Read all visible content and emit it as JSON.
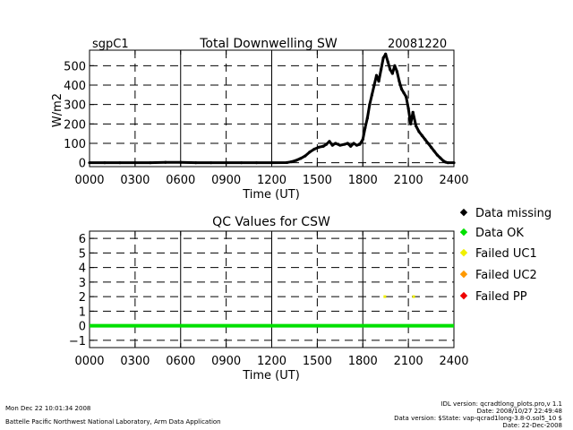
{
  "header": {
    "site": "sgpC1",
    "date": "20081220"
  },
  "legend": {
    "items": [
      {
        "label": "Data missing",
        "color": "#000000"
      },
      {
        "label": "Data OK",
        "color": "#00e000"
      },
      {
        "label": "Failed UC1",
        "color": "#f0f000"
      },
      {
        "label": "Failed UC2",
        "color": "#ff9900"
      },
      {
        "label": "Failed PP",
        "color": "#ee0000"
      }
    ]
  },
  "footer": {
    "run_time": "Mon Dec 22 10:01:34 2008",
    "org": "Battelle Pacific Northwest National Laboratory, Arm Data Application",
    "idl_version": "IDL version: qcradtlong_plots.pro,v 1.1",
    "idl_date": "Date: 2008/10/27 22:49:48",
    "data_version": "Data version: $State: vap-qcrad1long-3.8-0.sol5_10 $",
    "data_date": "Date: 22-Dec-2008"
  },
  "chart_data": [
    {
      "type": "scatter",
      "title": "Total Downwelling SW",
      "xlabel": "Time (UT)",
      "ylabel": "W/m2",
      "xlim": [
        0,
        2400
      ],
      "ylim": [
        -20,
        580
      ],
      "xticks": [
        "0000",
        "0300",
        "0600",
        "0900",
        "1200",
        "1500",
        "1800",
        "2100",
        "2400"
      ],
      "yticks": [
        0,
        100,
        200,
        300,
        400,
        500
      ],
      "grid": true,
      "series": [
        {
          "color": "#000000",
          "x": [
            0,
            100,
            200,
            300,
            400,
            500,
            600,
            700,
            800,
            900,
            1000,
            1100,
            1200,
            1300,
            1330,
            1360,
            1390,
            1420,
            1450,
            1480,
            1510,
            1540,
            1560,
            1580,
            1600,
            1620,
            1650,
            1680,
            1700,
            1720,
            1740,
            1760,
            1780,
            1800,
            1815,
            1830,
            1845,
            1860,
            1875,
            1890,
            1905,
            1920,
            1935,
            1950,
            1965,
            1980,
            1995,
            2010,
            2025,
            2040,
            2055,
            2070,
            2085,
            2100,
            2115,
            2130,
            2150,
            2170,
            2190,
            2210,
            2230,
            2250,
            2270,
            2290,
            2310,
            2330,
            2345,
            2360,
            2400
          ],
          "y": [
            0,
            0,
            0,
            0,
            0,
            2,
            2,
            0,
            0,
            0,
            0,
            0,
            0,
            1,
            5,
            12,
            22,
            35,
            55,
            70,
            80,
            85,
            95,
            110,
            90,
            100,
            90,
            95,
            100,
            85,
            100,
            90,
            95,
            120,
            180,
            230,
            300,
            350,
            400,
            450,
            420,
            480,
            540,
            560,
            520,
            480,
            460,
            500,
            470,
            420,
            380,
            360,
            340,
            280,
            200,
            260,
            190,
            160,
            140,
            120,
            100,
            80,
            60,
            40,
            25,
            10,
            3,
            0,
            0
          ]
        }
      ]
    },
    {
      "type": "scatter",
      "title": "QC Values for CSW",
      "xlabel": "Time (UT)",
      "xlim": [
        0,
        2400
      ],
      "ylim": [
        -1.5,
        6.5
      ],
      "xticks": [
        "0000",
        "0300",
        "0600",
        "0900",
        "1200",
        "1500",
        "1800",
        "2100",
        "2400"
      ],
      "yticks": [
        -1,
        0,
        1,
        2,
        3,
        4,
        5,
        6
      ],
      "grid": true,
      "series": [
        {
          "color": "#00e000",
          "x": [
            0,
            2400
          ],
          "y": [
            0,
            0
          ]
        },
        {
          "color": "#f0f000",
          "x": [
            1945,
            2135
          ],
          "y": [
            2,
            2
          ]
        }
      ]
    }
  ]
}
